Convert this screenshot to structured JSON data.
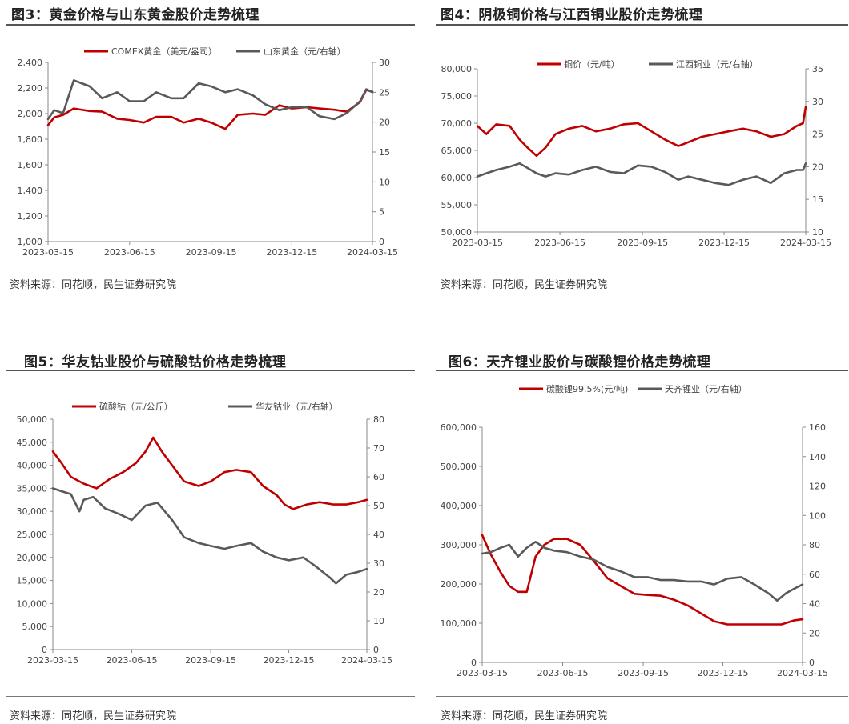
{
  "panels": [
    {
      "title": "图3：黄金价格与山东黄金股价走势梳理",
      "source": "资料来源：同花顺，民生证券研究院"
    },
    {
      "title": "图4：阴极铜价格与江西铜业股价走势梳理",
      "source": "资料来源：同花顺，民生证券研究院"
    },
    {
      "title": "图5：华友钴业股价与硫酸钴价格走势梳理",
      "source": "资料来源：同花顺，民生证券研究院"
    },
    {
      "title": "图6：天齐锂业股价与碳酸锂价格走势梳理",
      "source": "资料来源：同花顺，民生证券研究院"
    }
  ],
  "colors": {
    "red": "#c00000",
    "grey": "#595959"
  },
  "chart_data": [
    {
      "type": "line",
      "title": "",
      "x_range": [
        "2023-03-15",
        "2024-03-15"
      ],
      "x_ticks": [
        "2023-03-15",
        "2023-06-15",
        "2023-09-15",
        "2023-12-15",
        "2024-03-15"
      ],
      "y_left": {
        "range": [
          1000,
          2400
        ],
        "ticks": [
          "1,000",
          "1,200",
          "1,400",
          "1,600",
          "1,800",
          "2,000",
          "2,200",
          "2,400"
        ]
      },
      "y_right": {
        "range": [
          0,
          30
        ],
        "ticks": [
          "0",
          "5",
          "10",
          "15",
          "20",
          "25",
          "30"
        ]
      },
      "legend_position": "top",
      "series": [
        {
          "name": "COMEX黄金（美元/盎司）",
          "axis": "left",
          "color": "red",
          "x": [
            "2023-03-15",
            "2023-03-22",
            "2023-04-01",
            "2023-04-13",
            "2023-05-01",
            "2023-05-15",
            "2023-06-01",
            "2023-06-15",
            "2023-07-01",
            "2023-07-15",
            "2023-08-01",
            "2023-08-15",
            "2023-09-01",
            "2023-09-15",
            "2023-10-01",
            "2023-10-15",
            "2023-11-01",
            "2023-11-15",
            "2023-12-01",
            "2023-12-15",
            "2024-01-01",
            "2024-01-15",
            "2024-02-01",
            "2024-02-15",
            "2024-03-01",
            "2024-03-08",
            "2024-03-15"
          ],
          "y": [
            1910,
            1970,
            1990,
            2040,
            2020,
            2015,
            1960,
            1950,
            1930,
            1975,
            1975,
            1930,
            1960,
            1930,
            1880,
            1990,
            2000,
            1990,
            2065,
            2040,
            2050,
            2040,
            2030,
            2015,
            2090,
            2185,
            2170
          ]
        },
        {
          "name": "山东黄金（元/右轴）",
          "axis": "right",
          "color": "grey",
          "x": [
            "2023-03-15",
            "2023-03-22",
            "2023-04-01",
            "2023-04-13",
            "2023-05-01",
            "2023-05-15",
            "2023-06-01",
            "2023-06-15",
            "2023-07-01",
            "2023-07-15",
            "2023-08-01",
            "2023-08-15",
            "2023-09-01",
            "2023-09-15",
            "2023-10-01",
            "2023-10-15",
            "2023-11-01",
            "2023-11-15",
            "2023-12-01",
            "2023-12-15",
            "2024-01-01",
            "2024-01-15",
            "2024-02-01",
            "2024-02-15",
            "2024-03-01",
            "2024-03-08",
            "2024-03-15"
          ],
          "y": [
            20.5,
            22.0,
            21.5,
            27.0,
            26.0,
            24.0,
            25.0,
            23.5,
            23.5,
            25.0,
            24.0,
            24.0,
            26.5,
            26.0,
            25.0,
            25.5,
            24.5,
            23.0,
            22.0,
            22.5,
            22.5,
            21.0,
            20.5,
            21.5,
            23.5,
            25.5,
            25.0
          ]
        }
      ]
    },
    {
      "type": "line",
      "title": "",
      "x_range": [
        "2023-03-15",
        "2024-03-15"
      ],
      "x_ticks": [
        "2023-03-15",
        "2023-06-15",
        "2023-09-15",
        "2023-12-15",
        "2024-03-15"
      ],
      "y_left": {
        "range": [
          50000,
          80000
        ],
        "ticks": [
          "50,000",
          "55,000",
          "60,000",
          "65,000",
          "70,000",
          "75,000",
          "80,000"
        ]
      },
      "y_right": {
        "range": [
          10,
          35
        ],
        "ticks": [
          "10",
          "15",
          "20",
          "25",
          "30",
          "35"
        ]
      },
      "legend_position": "top",
      "series": [
        {
          "name": "铜价（元/吨）",
          "axis": "left",
          "color": "red",
          "x": [
            "2023-03-15",
            "2023-03-25",
            "2023-04-05",
            "2023-04-20",
            "2023-05-01",
            "2023-05-10",
            "2023-05-20",
            "2023-05-30",
            "2023-06-10",
            "2023-06-25",
            "2023-07-10",
            "2023-07-25",
            "2023-08-10",
            "2023-08-25",
            "2023-09-10",
            "2023-09-25",
            "2023-10-10",
            "2023-10-25",
            "2023-11-05",
            "2023-11-20",
            "2023-12-05",
            "2023-12-20",
            "2024-01-05",
            "2024-01-20",
            "2024-02-05",
            "2024-02-20",
            "2024-03-05",
            "2024-03-12",
            "2024-03-15"
          ],
          "y": [
            69500,
            68000,
            69800,
            69500,
            67000,
            65500,
            64000,
            65500,
            68000,
            69000,
            69500,
            68500,
            69000,
            69800,
            70000,
            68500,
            67000,
            65800,
            66500,
            67500,
            68000,
            68500,
            69000,
            68500,
            67500,
            68000,
            69500,
            70000,
            73000
          ]
        },
        {
          "name": "江西铜业（元/右轴）",
          "axis": "right",
          "color": "grey",
          "x": [
            "2023-03-15",
            "2023-03-25",
            "2023-04-05",
            "2023-04-20",
            "2023-05-01",
            "2023-05-10",
            "2023-05-20",
            "2023-05-30",
            "2023-06-10",
            "2023-06-25",
            "2023-07-10",
            "2023-07-25",
            "2023-08-10",
            "2023-08-25",
            "2023-09-10",
            "2023-09-25",
            "2023-10-10",
            "2023-10-25",
            "2023-11-05",
            "2023-11-20",
            "2023-12-05",
            "2023-12-20",
            "2024-01-05",
            "2024-01-20",
            "2024-02-05",
            "2024-02-20",
            "2024-03-05",
            "2024-03-12",
            "2024-03-15"
          ],
          "y": [
            18.5,
            19.0,
            19.5,
            20.0,
            20.5,
            19.8,
            19.0,
            18.5,
            19.0,
            18.8,
            19.5,
            20.0,
            19.2,
            19.0,
            20.2,
            20.0,
            19.2,
            18.0,
            18.5,
            18.0,
            17.5,
            17.2,
            18.0,
            18.5,
            17.5,
            19.0,
            19.5,
            19.5,
            20.5
          ]
        }
      ]
    },
    {
      "type": "line",
      "title": "",
      "x_range": [
        "2023-03-15",
        "2024-03-15"
      ],
      "x_ticks": [
        "2023-03-15",
        "2023-06-15",
        "2023-09-15",
        "2023-12-15",
        "2024-03-15"
      ],
      "y_left": {
        "range": [
          0,
          50000
        ],
        "ticks": [
          "0",
          "5,000",
          "10,000",
          "15,000",
          "20,000",
          "25,000",
          "30,000",
          "35,000",
          "40,000",
          "45,000",
          "50,000"
        ]
      },
      "y_right": {
        "range": [
          0,
          80
        ],
        "ticks": [
          "0",
          "10",
          "20",
          "30",
          "40",
          "50",
          "60",
          "70",
          "80"
        ]
      },
      "legend_position": "top",
      "series": [
        {
          "name": "硫酸钴（元/公斤）",
          "axis": "left",
          "color": "red",
          "x": [
            "2023-03-15",
            "2023-03-25",
            "2023-04-05",
            "2023-04-20",
            "2023-05-05",
            "2023-05-20",
            "2023-06-05",
            "2023-06-20",
            "2023-07-01",
            "2023-07-10",
            "2023-07-20",
            "2023-08-01",
            "2023-08-15",
            "2023-09-01",
            "2023-09-15",
            "2023-10-01",
            "2023-10-15",
            "2023-11-01",
            "2023-11-15",
            "2023-12-01",
            "2023-12-10",
            "2023-12-20",
            "2024-01-05",
            "2024-01-20",
            "2024-02-05",
            "2024-02-20",
            "2024-03-05",
            "2024-03-15"
          ],
          "y": [
            43000,
            40500,
            37500,
            36000,
            35000,
            37000,
            38500,
            40500,
            43000,
            46000,
            43000,
            40000,
            36500,
            35500,
            36500,
            38500,
            39000,
            38500,
            35500,
            33500,
            31500,
            30500,
            31500,
            32000,
            31500,
            31500,
            32000,
            32500
          ]
        },
        {
          "name": "华友钴业（元/右轴）",
          "axis": "right",
          "color": "grey",
          "x": [
            "2023-03-15",
            "2023-03-25",
            "2023-04-05",
            "2023-04-15",
            "2023-04-20",
            "2023-05-01",
            "2023-05-15",
            "2023-06-01",
            "2023-06-15",
            "2023-07-01",
            "2023-07-15",
            "2023-08-01",
            "2023-08-15",
            "2023-09-01",
            "2023-09-15",
            "2023-10-01",
            "2023-10-15",
            "2023-11-01",
            "2023-11-15",
            "2023-12-01",
            "2023-12-15",
            "2024-01-01",
            "2024-01-15",
            "2024-02-01",
            "2024-02-08",
            "2024-02-20",
            "2024-03-05",
            "2024-03-15"
          ],
          "y": [
            56,
            55,
            54,
            48,
            52,
            53,
            49,
            47,
            45,
            50,
            51,
            45,
            39,
            37,
            36,
            35,
            36,
            37,
            34,
            32,
            31,
            32,
            29,
            25,
            23,
            26,
            27,
            28
          ]
        }
      ]
    },
    {
      "type": "line",
      "title": "",
      "x_range": [
        "2023-03-15",
        "2024-03-15"
      ],
      "x_ticks": [
        "2023-03-15",
        "2023-06-15",
        "2023-09-15",
        "2023-12-15",
        "2024-03-15"
      ],
      "y_left": {
        "range": [
          0,
          600000
        ],
        "ticks": [
          "0",
          "100,000",
          "200,000",
          "300,000",
          "400,000",
          "500,000",
          "600,000"
        ]
      },
      "y_right": {
        "range": [
          0,
          160
        ],
        "ticks": [
          "0",
          "20",
          "40",
          "60",
          "80",
          "100",
          "120",
          "140",
          "160"
        ]
      },
      "legend_position": "top",
      "series": [
        {
          "name": "碳酸锂99.5%(元/吨)",
          "axis": "left",
          "color": "red",
          "x": [
            "2023-03-15",
            "2023-03-25",
            "2023-04-05",
            "2023-04-15",
            "2023-04-25",
            "2023-05-05",
            "2023-05-15",
            "2023-05-25",
            "2023-06-05",
            "2023-06-20",
            "2023-07-05",
            "2023-07-20",
            "2023-08-05",
            "2023-08-20",
            "2023-09-05",
            "2023-09-20",
            "2023-10-05",
            "2023-10-20",
            "2023-11-05",
            "2023-11-20",
            "2023-12-05",
            "2023-12-20",
            "2024-01-05",
            "2024-01-20",
            "2024-02-05",
            "2024-02-20",
            "2024-03-05",
            "2024-03-15"
          ],
          "y": [
            325000,
            275000,
            230000,
            195000,
            180000,
            180000,
            270000,
            300000,
            315000,
            315000,
            300000,
            260000,
            215000,
            195000,
            175000,
            172000,
            170000,
            160000,
            145000,
            125000,
            105000,
            97000,
            97000,
            97000,
            97000,
            97000,
            107000,
            110000
          ]
        },
        {
          "name": "天齐锂业（元/右轴）",
          "axis": "right",
          "color": "grey",
          "x": [
            "2023-03-15",
            "2023-03-25",
            "2023-04-05",
            "2023-04-15",
            "2023-04-25",
            "2023-05-05",
            "2023-05-15",
            "2023-05-25",
            "2023-06-05",
            "2023-06-20",
            "2023-07-05",
            "2023-07-20",
            "2023-08-05",
            "2023-08-20",
            "2023-09-05",
            "2023-09-20",
            "2023-10-05",
            "2023-10-20",
            "2023-11-05",
            "2023-11-20",
            "2023-12-05",
            "2023-12-20",
            "2024-01-05",
            "2024-01-20",
            "2024-02-05",
            "2024-02-15",
            "2024-02-25",
            "2024-03-05",
            "2024-03-15"
          ],
          "y": [
            74,
            75,
            78,
            80,
            72,
            78,
            82,
            78,
            76,
            75,
            72,
            70,
            65,
            62,
            58,
            58,
            56,
            56,
            55,
            55,
            53,
            57,
            58,
            53,
            47,
            42,
            47,
            50,
            53
          ]
        }
      ]
    }
  ]
}
